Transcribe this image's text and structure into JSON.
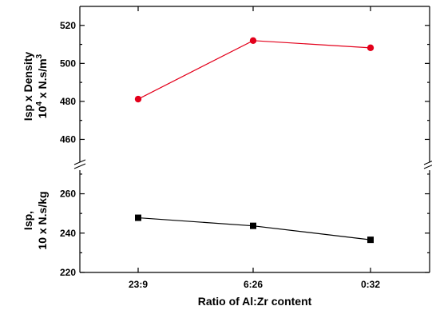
{
  "chart_data": {
    "type": "line",
    "categories": [
      "23:9",
      "6:26",
      "0:32"
    ],
    "xlabel": "Ratio of Al:Zr content",
    "panels": [
      {
        "id": "top",
        "ylabel_line1": "Isp x Density",
        "ylabel_line2_pre": "10",
        "ylabel_line2_exp": "4",
        "ylabel_line2_post": " x N.s/m",
        "ylabel_line2_unit_exp": "3",
        "ylim": [
          448,
          530
        ],
        "yticks": [
          460,
          480,
          500,
          520
        ],
        "series": [
          {
            "values": [
              481.2,
              512.0,
              508.2
            ],
            "color": "#e3001b",
            "marker": "circle"
          }
        ]
      },
      {
        "id": "bottom",
        "ylabel_line1": "Isp,",
        "ylabel_line2": "10 x N.s/kg",
        "ylim": [
          220,
          272
        ],
        "yticks": [
          220,
          240,
          260
        ],
        "series": [
          {
            "values": [
              247.8,
              243.7,
              236.6
            ],
            "color": "#000000",
            "marker": "square"
          }
        ]
      }
    ],
    "axis_break": true
  }
}
